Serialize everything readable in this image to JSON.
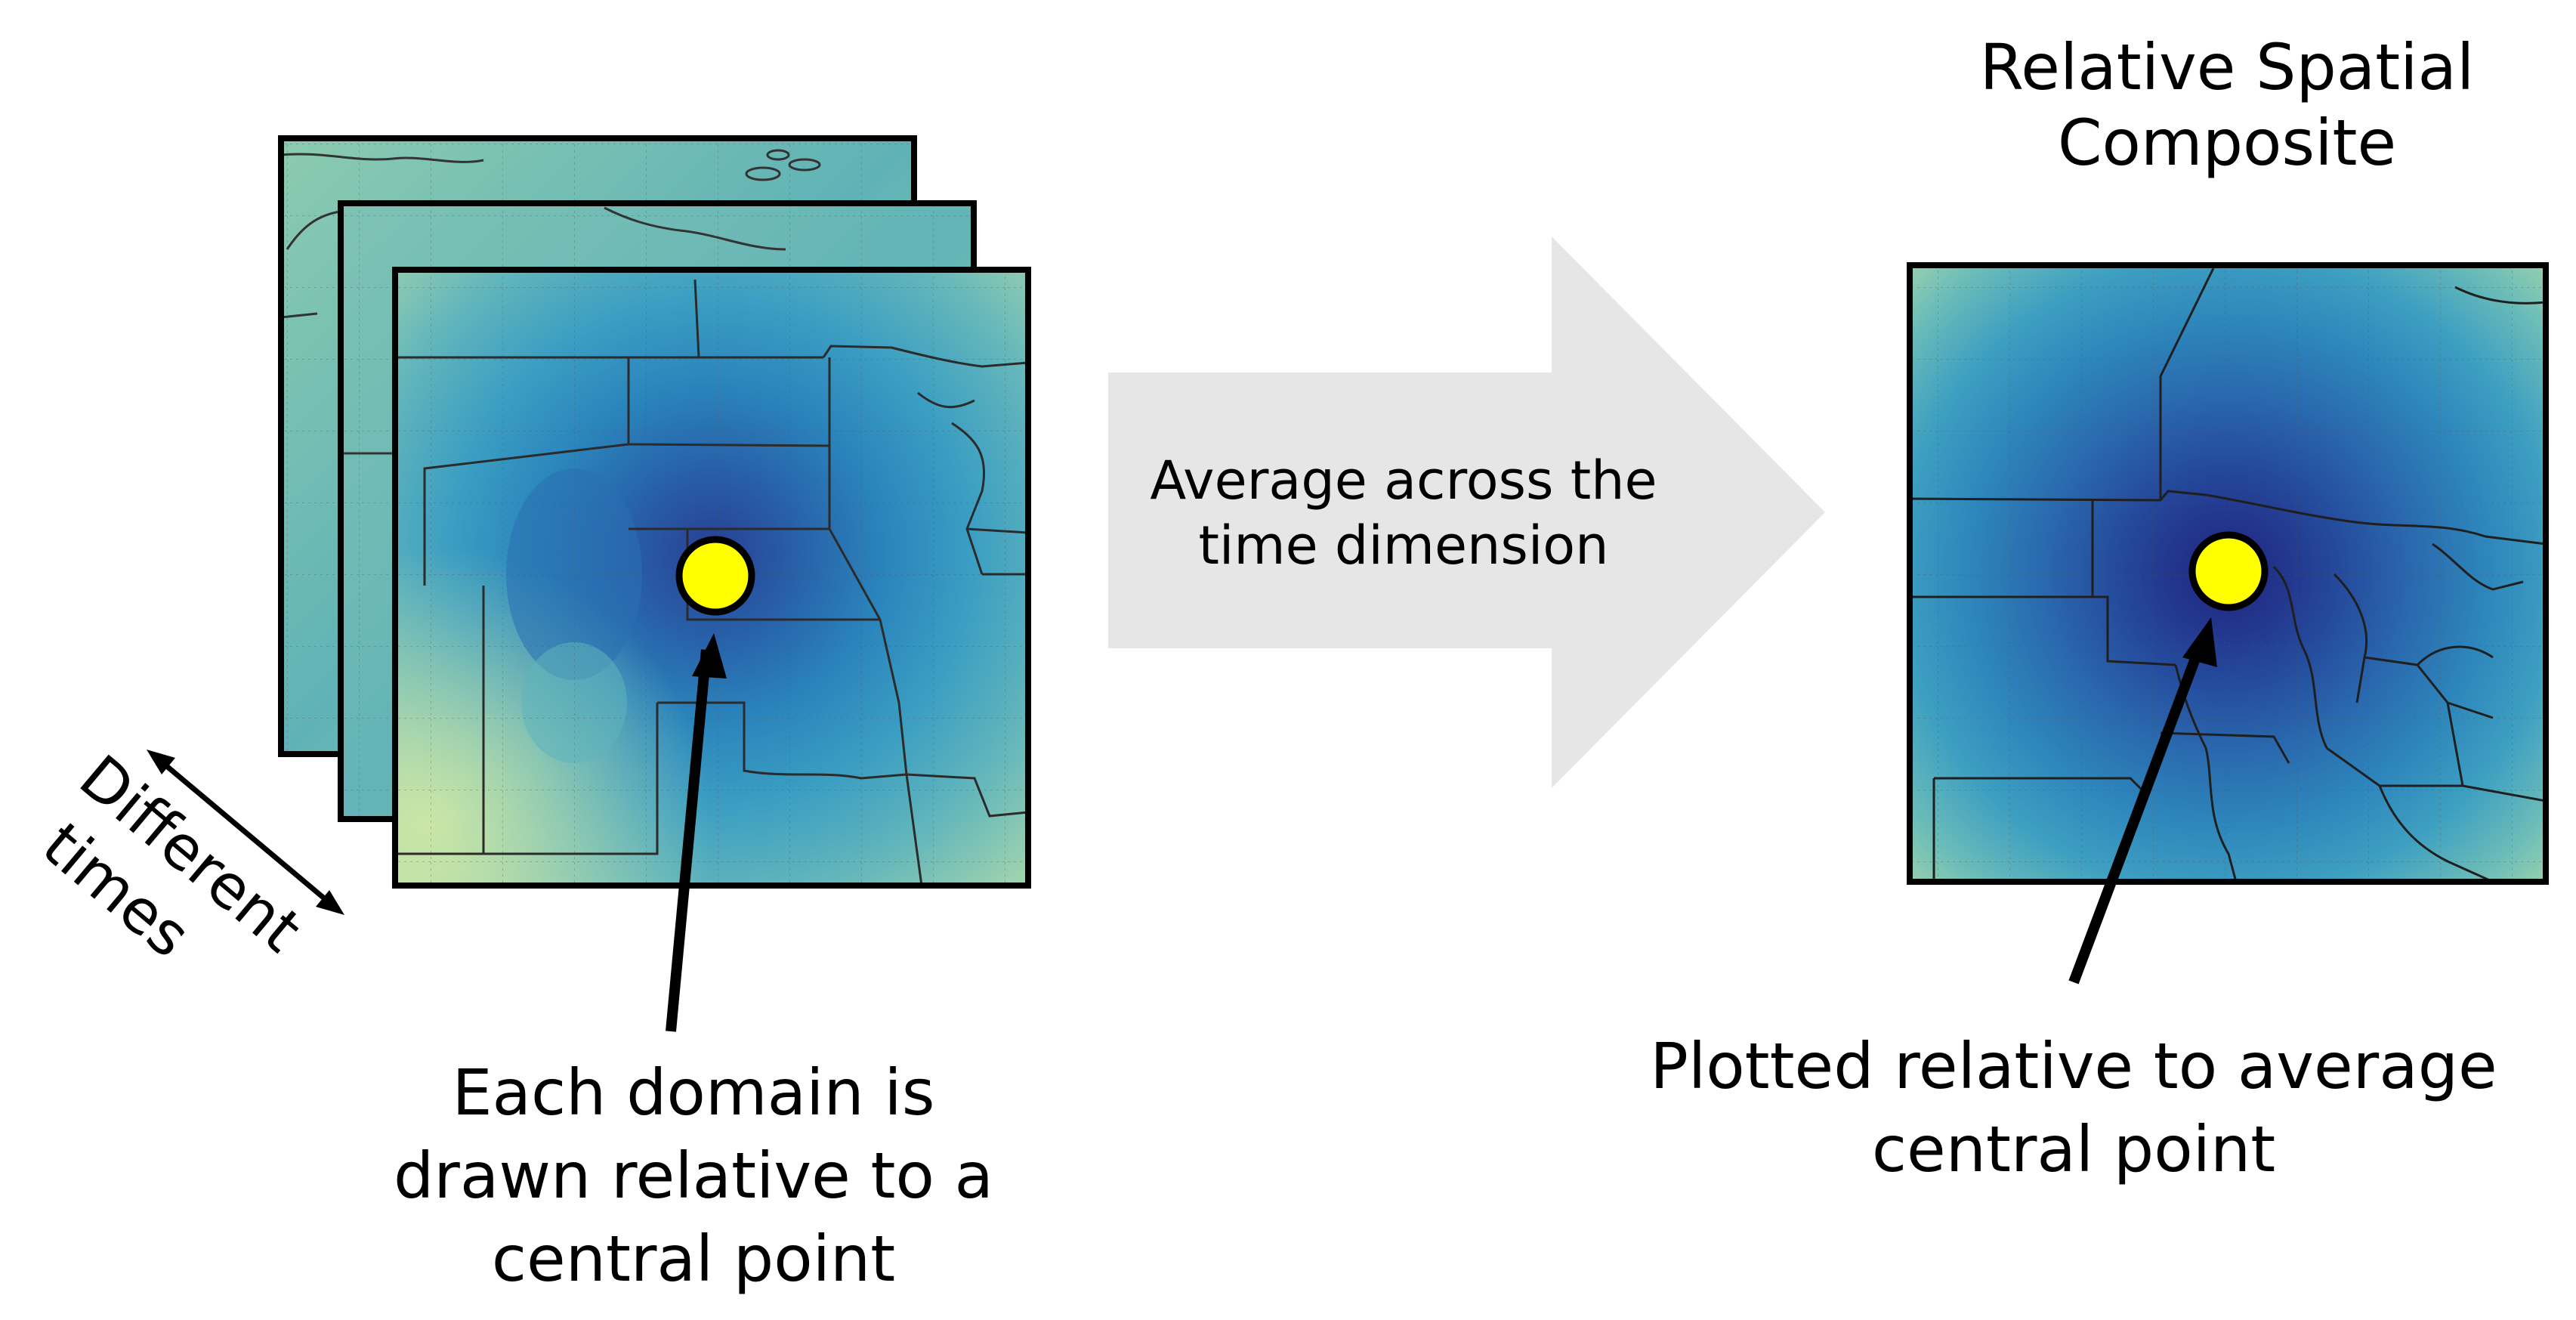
{
  "left_caption": {
    "line1": "Each domain is",
    "line2": "drawn relative to a",
    "line3": "central point"
  },
  "times_label": {
    "line1": "Different",
    "line2": "times"
  },
  "arrow_label": {
    "line1": "Average across the",
    "line2": "time dimension"
  },
  "composite_title": {
    "line1": "Relative Spatial",
    "line2": "Composite"
  },
  "right_caption": {
    "line1": "Plotted relative to average",
    "line2": "central point"
  },
  "colors": {
    "central_point": "#ffff00",
    "frame": "#000000",
    "process_arrow": "#e6e6e6",
    "map_light": "#9fd2ae",
    "map_mid": "#2f97c2",
    "map_dark": "#233c8e"
  }
}
